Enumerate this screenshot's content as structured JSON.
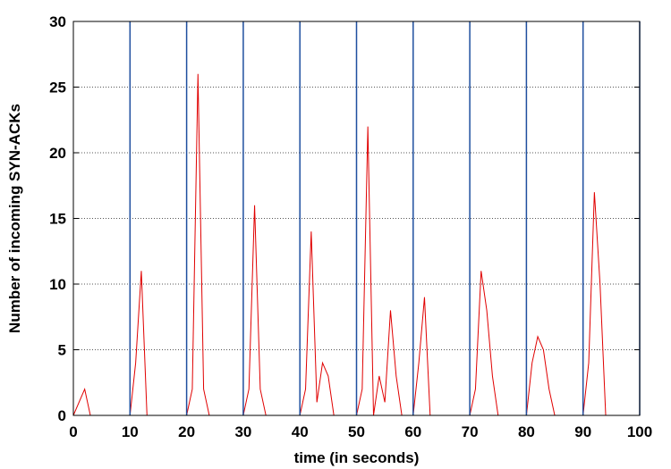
{
  "chart_data": {
    "type": "line",
    "title": "",
    "xlabel": "time (in seconds)",
    "ylabel": "Number of incoming SYN-ACKs",
    "xlim": [
      0,
      100
    ],
    "ylim": [
      0,
      30
    ],
    "x_ticks": [
      0,
      10,
      20,
      30,
      40,
      50,
      60,
      70,
      80,
      90,
      100
    ],
    "y_ticks": [
      0,
      5,
      10,
      15,
      20,
      25,
      30
    ],
    "x_tick_labels": [
      "0",
      "10",
      "20",
      "30",
      "40",
      "50",
      "60",
      "70",
      "80",
      "90",
      "100"
    ],
    "y_tick_labels": [
      "0",
      "5",
      "10",
      "15",
      "20",
      "25",
      "30"
    ],
    "grid": "horizontal dotted",
    "legend": "none",
    "series": [
      {
        "color": "#e00000",
        "x": [
          0,
          2,
          3,
          9,
          10,
          11,
          12,
          13,
          19,
          20,
          21,
          22,
          23,
          24,
          29,
          30,
          31,
          32,
          33,
          34,
          39,
          40,
          41,
          42,
          43,
          44,
          45,
          46,
          49,
          50,
          51,
          52,
          53,
          54,
          55,
          56,
          57,
          58,
          59,
          60,
          61,
          62,
          63,
          69,
          70,
          71,
          72,
          73,
          74,
          75,
          79,
          80,
          81,
          82,
          83,
          84,
          85,
          89,
          90,
          91,
          92,
          93,
          94,
          100
        ],
        "y": [
          0,
          2,
          0,
          0,
          0,
          4,
          11,
          0,
          0,
          0,
          2,
          26,
          2,
          0,
          0,
          0,
          2,
          16,
          2,
          0,
          0,
          0,
          2,
          14,
          1,
          4,
          3,
          0,
          0,
          0,
          2,
          22,
          0,
          3,
          1,
          8,
          3,
          0,
          0,
          0,
          4,
          9,
          0,
          0,
          0,
          2,
          11,
          8,
          3,
          0,
          0,
          0,
          4,
          6,
          5,
          2,
          0,
          0,
          0,
          4,
          17,
          10,
          0,
          0
        ]
      },
      {
        "color": "#1f4f9f",
        "type": "impulse",
        "x": [
          10,
          20,
          30,
          40,
          50,
          60,
          70,
          80,
          90,
          100
        ],
        "y": [
          30,
          30,
          30,
          30,
          30,
          30,
          30,
          30,
          30,
          30
        ]
      }
    ]
  }
}
